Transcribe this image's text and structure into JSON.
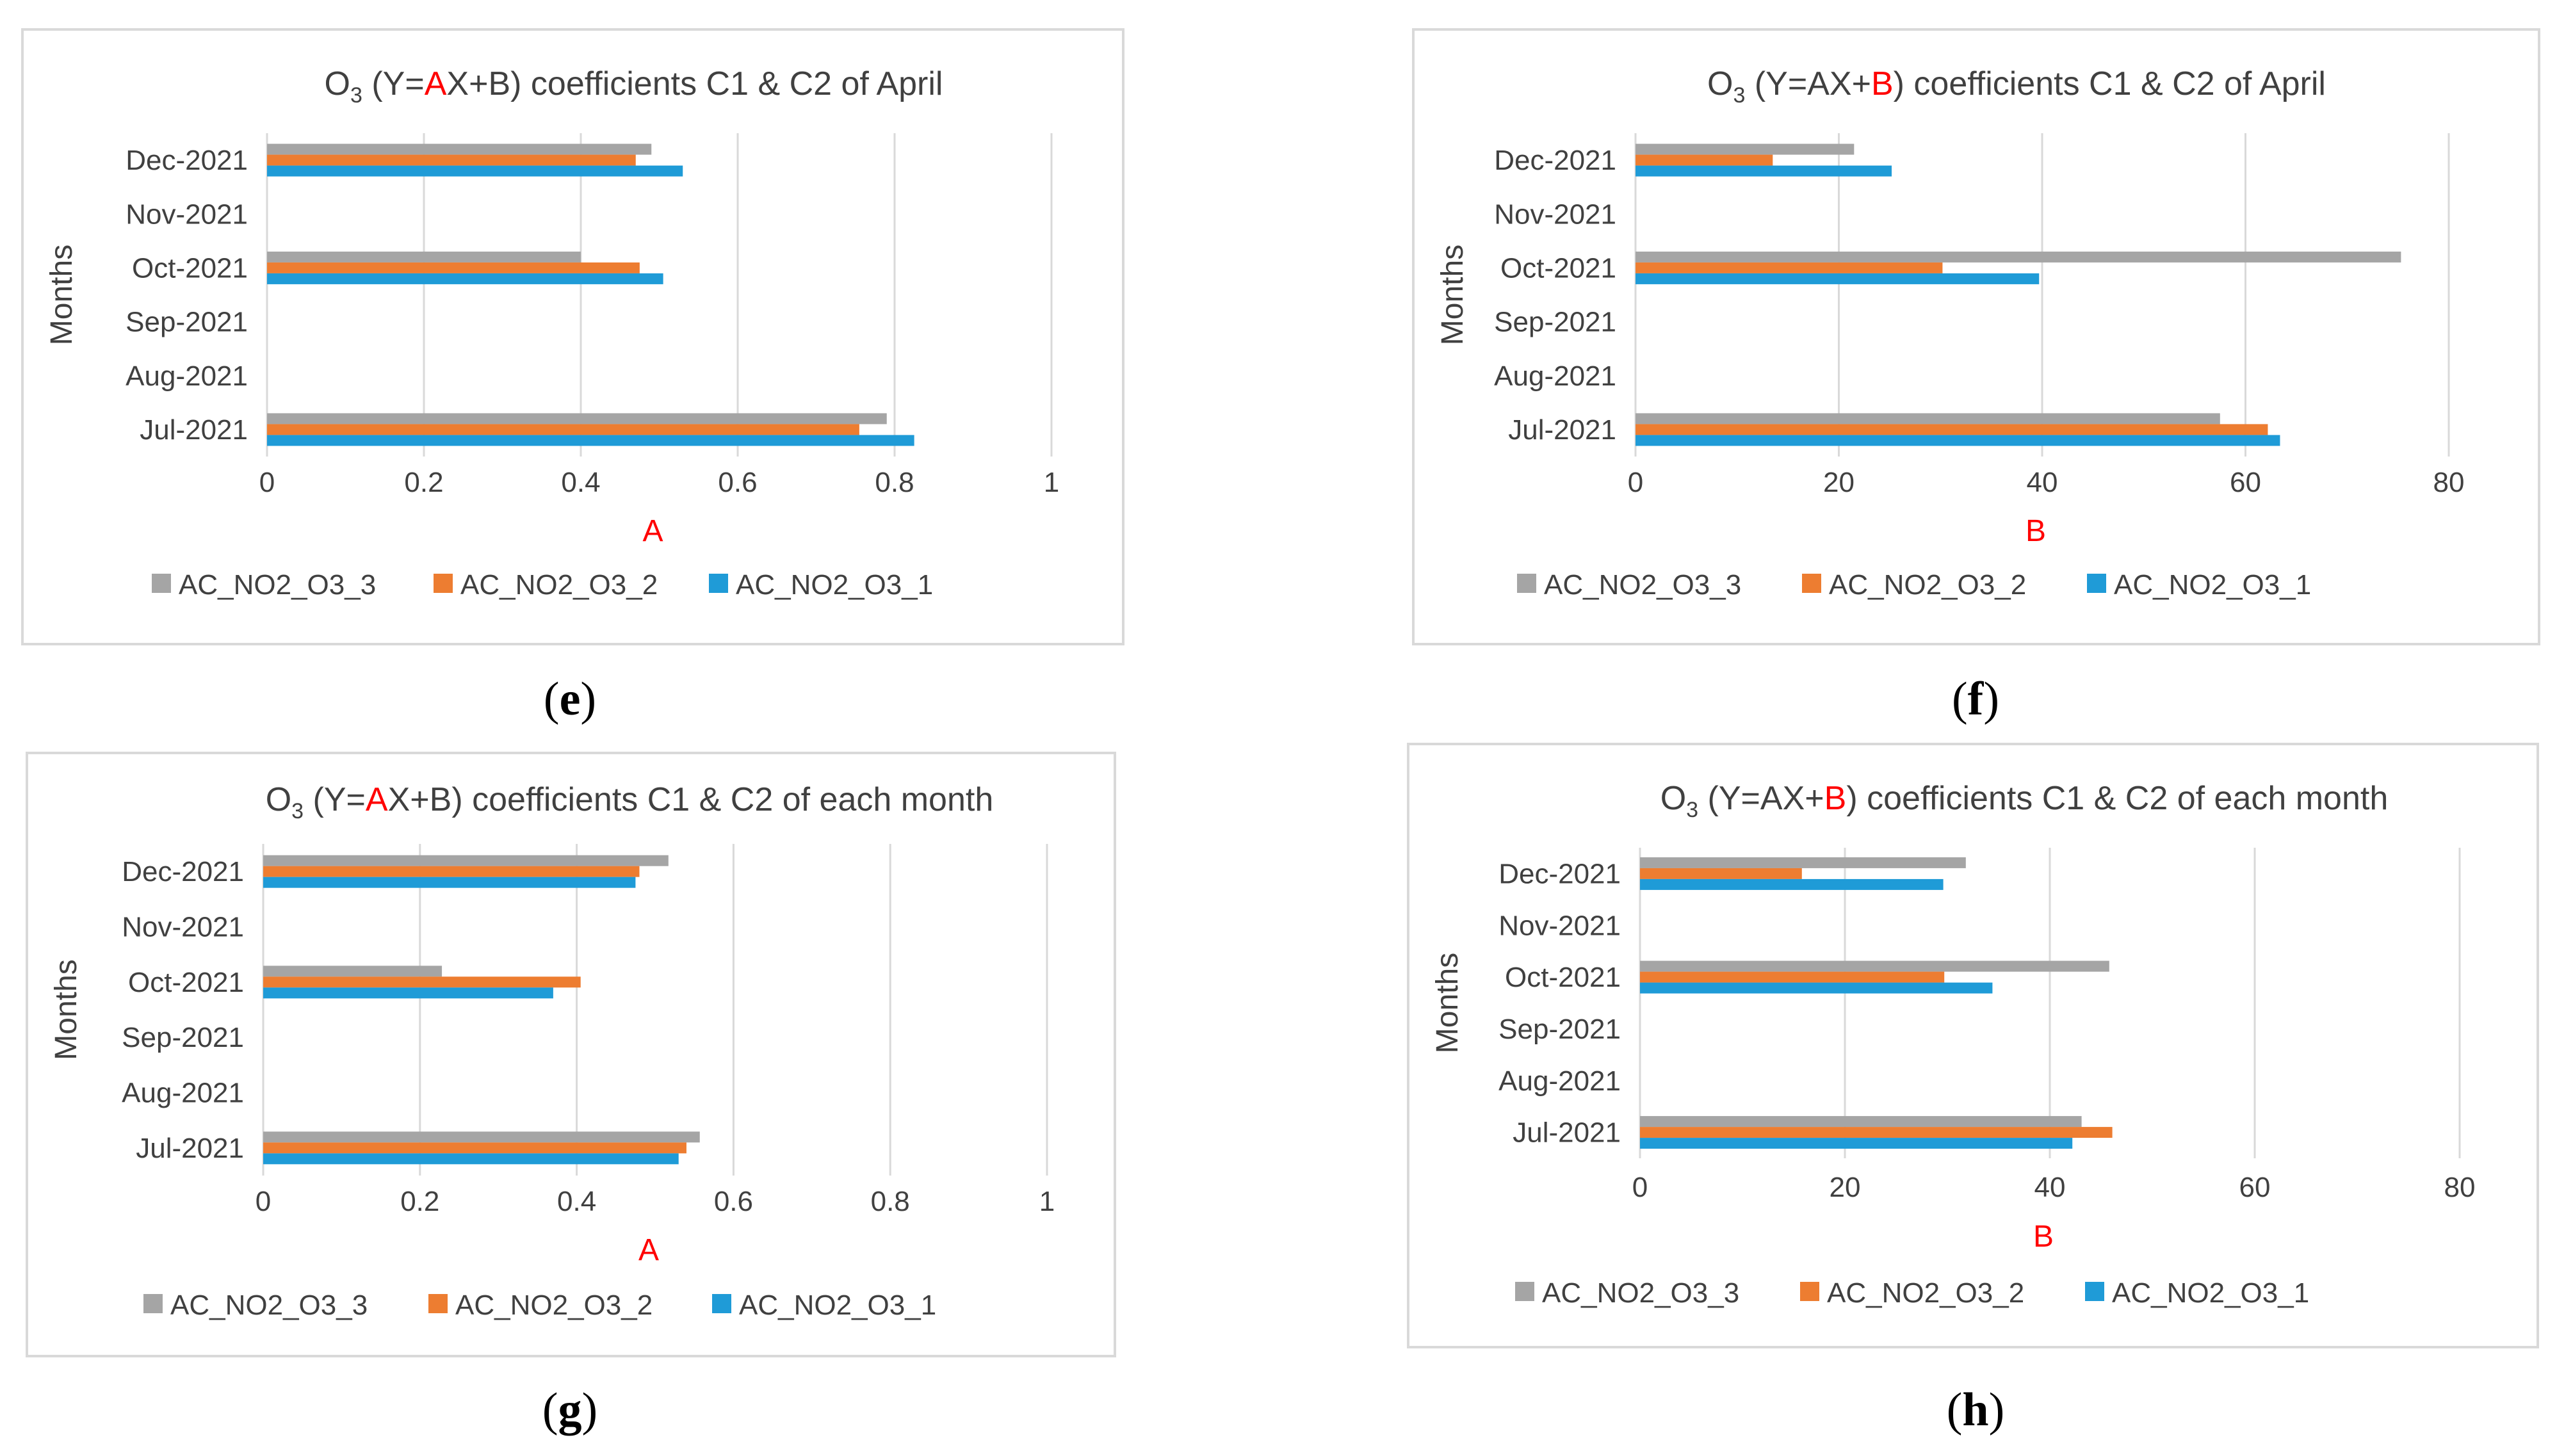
{
  "figure": {
    "captions": [
      {
        "open": "(",
        "letter": "e",
        "close": ")"
      },
      {
        "open": "(",
        "letter": "f",
        "close": ")"
      },
      {
        "open": "(",
        "letter": "g",
        "close": ")"
      },
      {
        "open": "(",
        "letter": "h",
        "close": ")"
      }
    ]
  },
  "chart_data": [
    {
      "type": "bar",
      "orientation": "horizontal",
      "title": {
        "prefix": "O",
        "subscript": "3",
        "pre": " (Y=",
        "hl": "A",
        "post": "X+B) coefficients C1 & C2  of April"
      },
      "highlight_color": "#ff0000",
      "ylabel": "Months",
      "xlabel": "A",
      "xlabel_color": "#ff0000",
      "xlim": [
        0,
        1
      ],
      "xticks": [
        "0",
        "0.2",
        "0.4",
        "0.6",
        "0.8",
        "1"
      ],
      "xtick_values": [
        0,
        0.2,
        0.4,
        0.6,
        0.8,
        1
      ],
      "grid": true,
      "legend_position": "bottom",
      "categories": [
        "Dec-2021",
        "Nov-2021",
        "Oct-2021",
        "Sep-2021",
        "Aug-2021",
        "Jul-2021"
      ],
      "series": [
        {
          "name": "AC_NO2_O3_3",
          "color": "#a5a5a5",
          "values": [
            0.49,
            null,
            0.4,
            null,
            null,
            0.79
          ]
        },
        {
          "name": "AC_NO2_O3_2",
          "color": "#ed7d31",
          "values": [
            0.47,
            null,
            0.475,
            null,
            null,
            0.755
          ]
        },
        {
          "name": "AC_NO2_O3_1",
          "color": "#1f9bd7",
          "values": [
            0.53,
            null,
            0.505,
            null,
            null,
            0.825
          ]
        }
      ]
    },
    {
      "type": "bar",
      "orientation": "horizontal",
      "title": {
        "prefix": "O",
        "subscript": "3",
        "pre": " (Y=AX+",
        "hl": "B",
        "post": ") coefficients C1 & C2  of April"
      },
      "highlight_color": "#ff0000",
      "ylabel": "Months",
      "xlabel": "B",
      "xlabel_color": "#ff0000",
      "xlim": [
        0,
        80
      ],
      "xticks": [
        "0",
        "20",
        "40",
        "60",
        "80"
      ],
      "xtick_values": [
        0,
        20,
        40,
        60,
        80
      ],
      "grid": true,
      "legend_position": "bottom",
      "categories": [
        "Dec-2021",
        "Nov-2021",
        "Oct-2021",
        "Sep-2021",
        "Aug-2021",
        "Jul-2021"
      ],
      "series": [
        {
          "name": "AC_NO2_O3_3",
          "color": "#a5a5a5",
          "values": [
            21.5,
            null,
            75.3,
            null,
            null,
            57.5
          ]
        },
        {
          "name": "AC_NO2_O3_2",
          "color": "#ed7d31",
          "values": [
            13.5,
            null,
            30.2,
            null,
            null,
            62.2
          ]
        },
        {
          "name": "AC_NO2_O3_1",
          "color": "#1f9bd7",
          "values": [
            25.2,
            null,
            39.7,
            null,
            null,
            63.4
          ]
        }
      ]
    },
    {
      "type": "bar",
      "orientation": "horizontal",
      "title": {
        "prefix": "O",
        "subscript": "3",
        "pre": " (Y=",
        "hl": "A",
        "post": "X+B) coefficients C1 & C2  of each month"
      },
      "highlight_color": "#ff0000",
      "ylabel": "Months",
      "xlabel": "A",
      "xlabel_color": "#ff0000",
      "xlim": [
        0,
        1
      ],
      "xticks": [
        "0",
        "0.2",
        "0.4",
        "0.6",
        "0.8",
        "1"
      ],
      "xtick_values": [
        0,
        0.2,
        0.4,
        0.6,
        0.8,
        1
      ],
      "grid": true,
      "legend_position": "bottom",
      "categories": [
        "Dec-2021",
        "Nov-2021",
        "Oct-2021",
        "Sep-2021",
        "Aug-2021",
        "Jul-2021"
      ],
      "series": [
        {
          "name": "AC_NO2_O3_3",
          "color": "#a5a5a5",
          "values": [
            0.517,
            null,
            0.228,
            null,
            null,
            0.557
          ]
        },
        {
          "name": "AC_NO2_O3_2",
          "color": "#ed7d31",
          "values": [
            0.48,
            null,
            0.405,
            null,
            null,
            0.54
          ]
        },
        {
          "name": "AC_NO2_O3_1",
          "color": "#1f9bd7",
          "values": [
            0.475,
            null,
            0.37,
            null,
            null,
            0.53
          ]
        }
      ]
    },
    {
      "type": "bar",
      "orientation": "horizontal",
      "title": {
        "prefix": "O",
        "subscript": "3",
        "pre": " (Y=AX+",
        "hl": "B",
        "post": ") coefficients C1 & C2  of each month"
      },
      "highlight_color": "#ff0000",
      "ylabel": "Months",
      "xlabel": "B",
      "xlabel_color": "#ff0000",
      "xlim": [
        0,
        80
      ],
      "xticks": [
        "0",
        "20",
        "40",
        "60",
        "80"
      ],
      "xtick_values": [
        0,
        20,
        40,
        60,
        80
      ],
      "grid": true,
      "legend_position": "bottom",
      "categories": [
        "Dec-2021",
        "Nov-2021",
        "Oct-2021",
        "Sep-2021",
        "Aug-2021",
        "Jul-2021"
      ],
      "series": [
        {
          "name": "AC_NO2_O3_3",
          "color": "#a5a5a5",
          "values": [
            31.8,
            null,
            45.8,
            null,
            null,
            43.1
          ]
        },
        {
          "name": "AC_NO2_O3_2",
          "color": "#ed7d31",
          "values": [
            15.8,
            null,
            29.7,
            null,
            null,
            46.1
          ]
        },
        {
          "name": "AC_NO2_O3_1",
          "color": "#1f9bd7",
          "values": [
            29.6,
            null,
            34.4,
            null,
            null,
            42.2
          ]
        }
      ]
    }
  ]
}
